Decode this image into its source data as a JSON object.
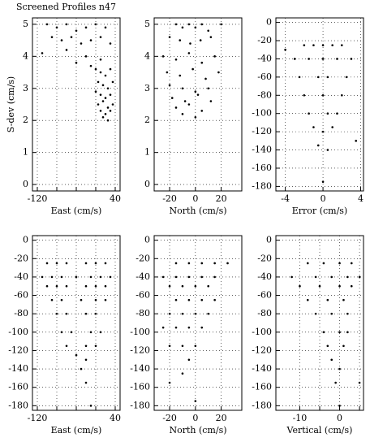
{
  "chart_data": [
    {
      "type": "scatter",
      "title": "Screened Profiles n47",
      "xlabel": "East (cm/s)",
      "ylabel": "S-dev (cm/s)",
      "xlim": [
        -130,
        50
      ],
      "xticks": [
        -120,
        40
      ],
      "xgrid": [
        -80,
        -40,
        0
      ],
      "ylim": [
        -0.2,
        5.2
      ],
      "yticks": [
        0,
        1,
        2,
        3,
        4,
        5
      ],
      "grid": true,
      "color": "#000000",
      "x": [
        -100,
        -80,
        -60,
        -40,
        -20,
        0,
        20,
        -90,
        -70,
        -50,
        -30,
        -10,
        10,
        30,
        -110,
        -60,
        -20,
        10,
        0,
        10,
        20,
        30,
        5,
        15,
        25,
        35,
        0,
        10,
        20,
        30,
        5,
        15,
        25,
        35,
        10,
        20,
        30,
        15,
        25,
        -40,
        -10
      ],
      "y": [
        5,
        4.9,
        5,
        4.8,
        4.9,
        5,
        4.9,
        4.6,
        4.5,
        4.6,
        4.4,
        4.5,
        4.6,
        4.4,
        4.1,
        4.2,
        4.0,
        3.9,
        3.6,
        3.5,
        3.4,
        3.6,
        3.2,
        3.1,
        3.0,
        3.2,
        2.9,
        2.8,
        2.7,
        2.8,
        2.5,
        2.6,
        2.4,
        2.5,
        2.3,
        2.2,
        2.3,
        2.1,
        2.0,
        3.8,
        3.7
      ]
    },
    {
      "type": "scatter",
      "xlabel": "North (cm/s)",
      "xlim": [
        -32,
        36
      ],
      "xticks": [
        -20,
        0,
        20
      ],
      "ylim": [
        -0.2,
        5.2
      ],
      "yticks": [
        0,
        1,
        2,
        3,
        4,
        5
      ],
      "grid": true,
      "color": "#000000",
      "x": [
        -15,
        -10,
        -5,
        0,
        5,
        10,
        20,
        -20,
        -12,
        -4,
        4,
        12,
        -25,
        -15,
        -5,
        5,
        15,
        -22,
        -12,
        -2,
        8,
        18,
        -20,
        -10,
        0,
        10,
        -18,
        -8,
        2,
        12,
        -15,
        -5,
        5,
        -10,
        0
      ],
      "y": [
        5,
        4.9,
        5,
        4.9,
        5,
        4.8,
        5,
        4.6,
        4.5,
        4.4,
        4.5,
        4.6,
        4.0,
        3.9,
        4.1,
        3.8,
        4.0,
        3.5,
        3.4,
        3.6,
        3.3,
        3.5,
        3.1,
        3.0,
        2.9,
        3.0,
        2.7,
        2.6,
        2.8,
        2.6,
        2.4,
        2.5,
        2.3,
        2.2,
        2.1
      ]
    },
    {
      "type": "scatter",
      "xlabel": "Error (cm/s)",
      "xlim": [
        -5,
        4.3
      ],
      "xticks": [
        -4,
        0,
        4
      ],
      "ylim": [
        -185,
        5
      ],
      "yticks": [
        0,
        -20,
        -40,
        -60,
        -80,
        -100,
        -120,
        -140,
        -160,
        -180
      ],
      "grid": true,
      "color": "#000000",
      "x": [
        -2,
        -1,
        0,
        1,
        2,
        -3,
        -1.5,
        0,
        1.5,
        3,
        -2.5,
        -0.5,
        0.5,
        2.5,
        -2,
        0,
        2,
        -1.5,
        0.5,
        1.5,
        -1,
        0,
        1,
        -0.5,
        0.5,
        0,
        -4,
        3.5
      ],
      "y": [
        -25,
        -25,
        -25,
        -25,
        -25,
        -40,
        -40,
        -40,
        -40,
        -40,
        -60,
        -60,
        -60,
        -60,
        -80,
        -80,
        -80,
        -100,
        -100,
        -100,
        -115,
        -120,
        -115,
        -135,
        -140,
        -175,
        -30,
        -130
      ]
    },
    {
      "type": "scatter",
      "xlabel": "East (cm/s)",
      "xlim": [
        -130,
        50
      ],
      "xticks": [
        -120,
        40
      ],
      "xgrid": [
        -80,
        -40,
        0
      ],
      "ylim": [
        -185,
        5
      ],
      "yticks": [
        0,
        -20,
        -40,
        -60,
        -80,
        -100,
        -120,
        -140,
        -160,
        -180
      ],
      "grid": true,
      "color": "#000000",
      "x": [
        -100,
        -80,
        -60,
        -20,
        0,
        20,
        -110,
        -90,
        -70,
        -40,
        -10,
        10,
        30,
        -100,
        -80,
        -60,
        -20,
        0,
        20,
        -90,
        -70,
        -30,
        0,
        20,
        -80,
        -60,
        -20,
        0,
        -70,
        -50,
        -10,
        10,
        -60,
        -20,
        0,
        -40,
        -20,
        -30,
        -20,
        -10
      ],
      "y": [
        -25,
        -25,
        -25,
        -25,
        -25,
        -25,
        -40,
        -40,
        -40,
        -40,
        -40,
        -40,
        -40,
        -50,
        -50,
        -50,
        -50,
        -50,
        -50,
        -65,
        -65,
        -65,
        -65,
        -65,
        -80,
        -80,
        -80,
        -80,
        -100,
        -100,
        -100,
        -100,
        -115,
        -115,
        -115,
        -125,
        -130,
        -140,
        -155,
        -180
      ]
    },
    {
      "type": "scatter",
      "xlabel": "North (cm/s)",
      "xlim": [
        -32,
        36
      ],
      "xticks": [
        -20,
        0,
        20
      ],
      "ylim": [
        -185,
        5
      ],
      "yticks": [
        0,
        -20,
        -40,
        -60,
        -80,
        -100,
        -120,
        -140,
        -160,
        -180
      ],
      "grid": true,
      "color": "#000000",
      "x": [
        -15,
        -5,
        5,
        15,
        25,
        -25,
        -15,
        -5,
        5,
        15,
        -20,
        -10,
        0,
        10,
        -15,
        -5,
        5,
        15,
        -20,
        -10,
        0,
        10,
        -25,
        -15,
        -5,
        5,
        -20,
        -10,
        0,
        -5,
        -10,
        -20,
        0
      ],
      "y": [
        -25,
        -25,
        -25,
        -25,
        -25,
        -40,
        -40,
        -40,
        -40,
        -40,
        -50,
        -50,
        -50,
        -50,
        -65,
        -65,
        -65,
        -65,
        -80,
        -80,
        -80,
        -80,
        -95,
        -95,
        -95,
        -95,
        -115,
        -115,
        -115,
        -130,
        -145,
        -155,
        -175
      ]
    },
    {
      "type": "scatter",
      "xlabel": "Vertical (cm/s)",
      "xlim": [
        -16,
        6
      ],
      "xticks": [
        -10,
        0
      ],
      "xgrid": [
        -5,
        5
      ],
      "ylim": [
        -185,
        5
      ],
      "yticks": [
        0,
        -20,
        -40,
        -60,
        -80,
        -100,
        -120,
        -140,
        -160,
        -180
      ],
      "grid": true,
      "color": "#000000",
      "x": [
        -8,
        -4,
        0,
        3,
        -12,
        -6,
        -2,
        2,
        5,
        -10,
        -5,
        0,
        3,
        -8,
        -3,
        1,
        -6,
        -2,
        2,
        -4,
        0,
        2,
        -3,
        1,
        -2,
        0,
        -1,
        5,
        0
      ],
      "y": [
        -25,
        -25,
        -25,
        -25,
        -40,
        -40,
        -40,
        -40,
        -40,
        -50,
        -50,
        -50,
        -50,
        -65,
        -65,
        -65,
        -80,
        -80,
        -80,
        -100,
        -100,
        -100,
        -115,
        -115,
        -130,
        -140,
        -155,
        -155,
        -180
      ]
    }
  ]
}
